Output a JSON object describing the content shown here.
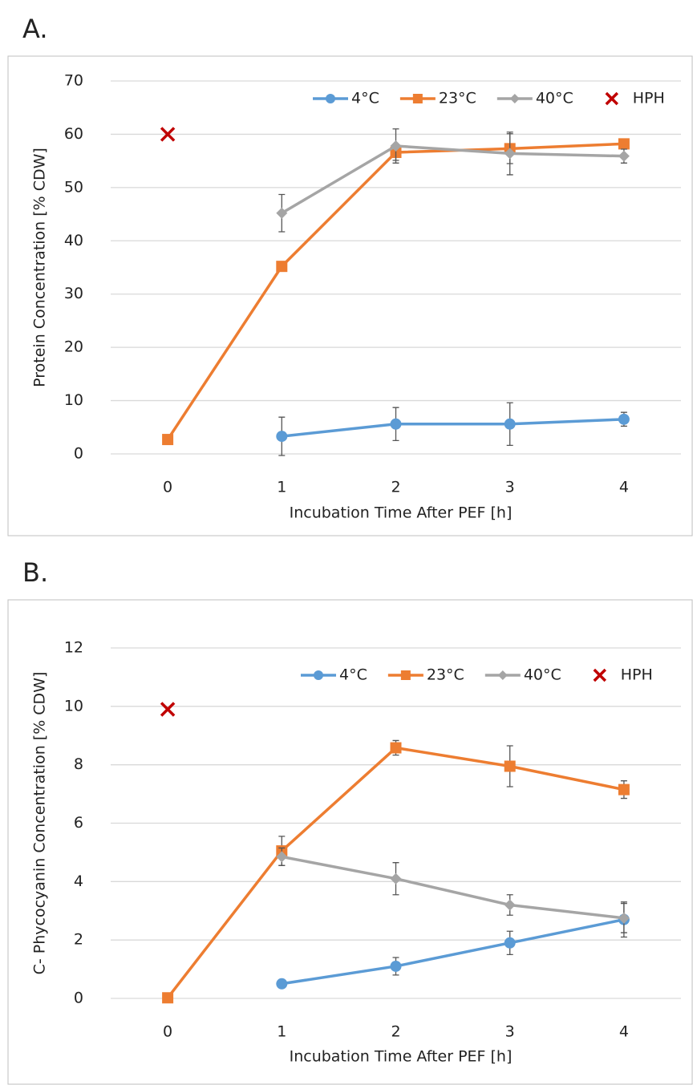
{
  "chart_data": [
    {
      "type": "line",
      "panel_label": "A.",
      "x_label": "Incubation Time After PEF [h]",
      "y_label": "Protein Concentration [% CDW]",
      "x": [
        0,
        1,
        2,
        3,
        4
      ],
      "xlim": [
        -0.5,
        4.5
      ],
      "xticks": [
        0,
        1,
        2,
        3,
        4
      ],
      "ylim": [
        0,
        70
      ],
      "yticks": [
        0,
        10,
        20,
        30,
        40,
        50,
        60,
        70
      ],
      "grid": true,
      "legend": "upper right",
      "series": [
        {
          "name": "4°C",
          "color": "#5b9bd5",
          "marker": "circle",
          "line": true,
          "values": [
            null,
            3.3,
            5.6,
            5.6,
            6.5
          ],
          "errors": [
            null,
            3.6,
            3.1,
            4.0,
            1.3
          ]
        },
        {
          "name": "23°C",
          "color": "#ed7d31",
          "marker": "square",
          "line": true,
          "values": [
            2.7,
            35.2,
            56.6,
            57.3,
            58.2
          ],
          "errors": [
            0.3,
            0.5,
            1.5,
            2.8,
            0.5
          ]
        },
        {
          "name": "40°C",
          "color": "#a5a5a5",
          "marker": "diamond",
          "line": true,
          "values": [
            null,
            45.2,
            57.8,
            56.4,
            55.9
          ],
          "errors": [
            null,
            3.5,
            3.2,
            4.0,
            1.3
          ]
        },
        {
          "name": "HPH",
          "color": "#c00000",
          "marker": "x",
          "line": false,
          "values": [
            60,
            null,
            null,
            null,
            null
          ],
          "errors": [
            null,
            null,
            null,
            null,
            null
          ]
        }
      ]
    },
    {
      "type": "line",
      "panel_label": "B.",
      "x_label": "Incubation Time After PEF [h]",
      "y_label": "C- Phycocyanin Concentration [% CDW]",
      "x": [
        0,
        1,
        2,
        3,
        4
      ],
      "xlim": [
        -0.5,
        4.5
      ],
      "xticks": [
        0,
        1,
        2,
        3,
        4
      ],
      "ylim": [
        0,
        12
      ],
      "yticks": [
        0,
        2,
        4,
        6,
        8,
        10,
        12
      ],
      "grid": true,
      "legend": "upper right",
      "series": [
        {
          "name": "4°C",
          "color": "#5b9bd5",
          "marker": "circle",
          "line": true,
          "values": [
            null,
            0.5,
            1.1,
            1.9,
            2.7
          ],
          "errors": [
            null,
            0.05,
            0.3,
            0.4,
            0.6
          ]
        },
        {
          "name": "23°C",
          "color": "#ed7d31",
          "marker": "square",
          "line": true,
          "values": [
            0.02,
            5.05,
            8.58,
            7.95,
            7.15
          ],
          "errors": [
            0.05,
            0.5,
            0.25,
            0.7,
            0.3
          ]
        },
        {
          "name": "40°C",
          "color": "#a5a5a5",
          "marker": "diamond",
          "line": true,
          "values": [
            null,
            4.85,
            4.1,
            3.2,
            2.75
          ],
          "errors": [
            null,
            0.3,
            0.55,
            0.35,
            0.5
          ]
        },
        {
          "name": "HPH",
          "color": "#c00000",
          "marker": "x",
          "line": false,
          "values": [
            9.9,
            null,
            null,
            null,
            null
          ],
          "errors": [
            null,
            null,
            null,
            null,
            null
          ]
        }
      ]
    }
  ]
}
